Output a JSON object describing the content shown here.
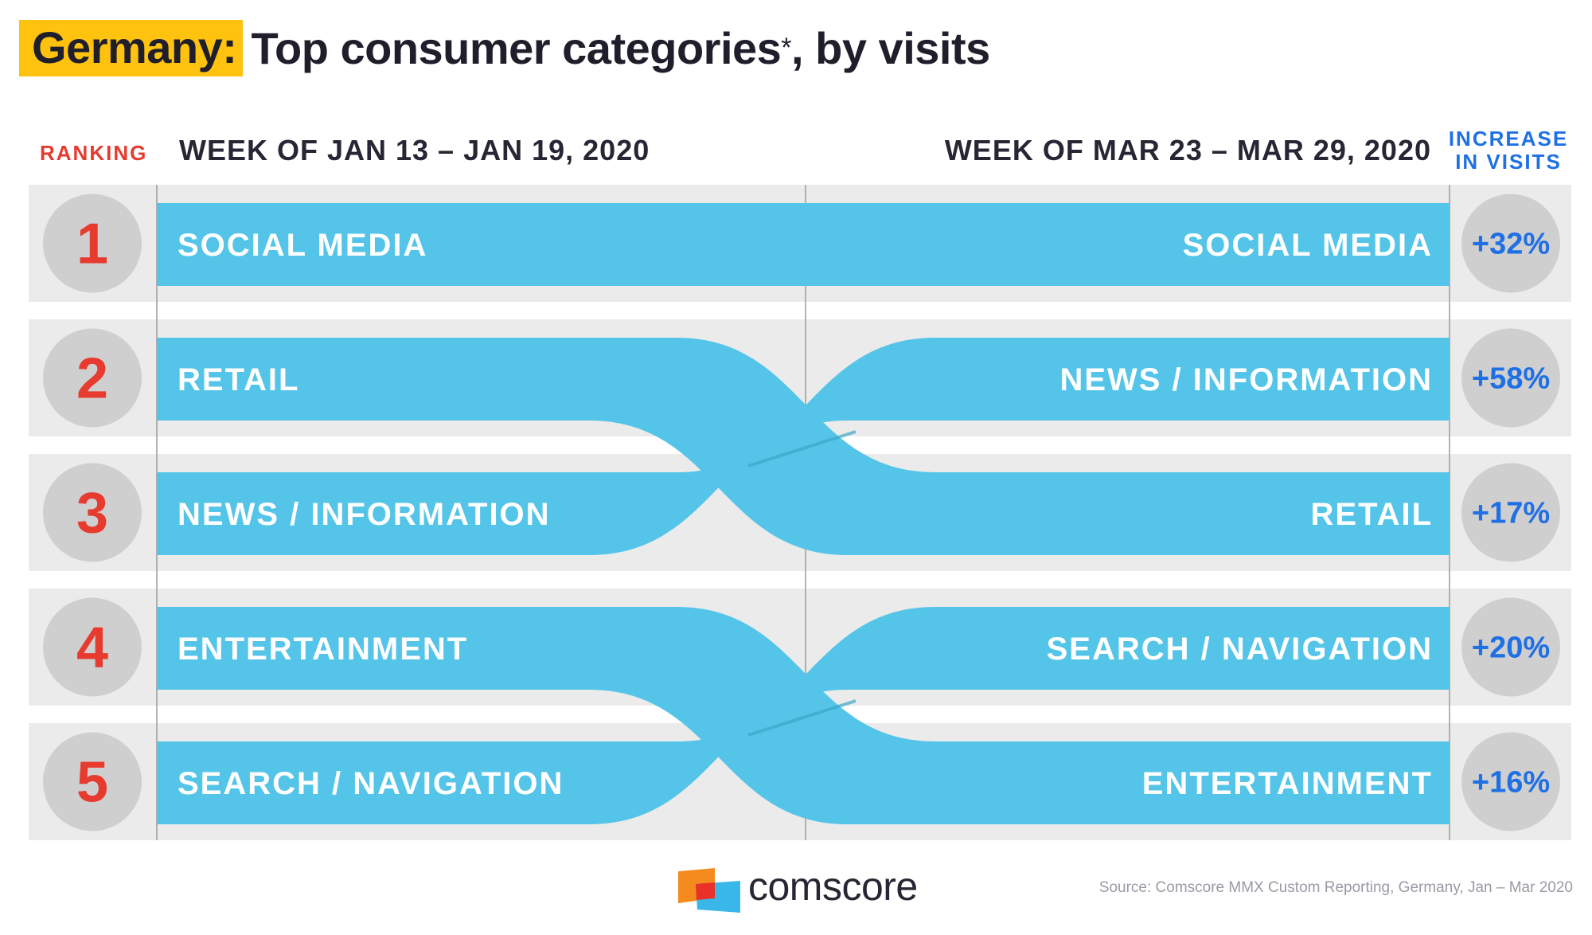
{
  "title": {
    "country": "Germany:",
    "main": "Top consumer categories",
    "asterisk": "*",
    "suffix": ", by visits"
  },
  "headers": {
    "ranking": "RANKING",
    "left_week": "WEEK OF JAN 13 – JAN 19, 2020",
    "right_week": "WEEK OF MAR 23 – MAR 29, 2020",
    "increase_line1": "INCREASE",
    "increase_line2": "IN VISITS"
  },
  "colors": {
    "band": "#54c5e8",
    "row_bg": "#ebebeb",
    "circle": "#cfcfcf",
    "rank_text": "#e63b2e",
    "increase_text": "#1f6fe5",
    "brand_orange": "#f58a1f",
    "brand_red": "#e9302a",
    "brand_blue": "#38b7e8"
  },
  "chart_data": {
    "type": "table",
    "title": "Germany: Top consumer categories*, by visits",
    "ranks": [
      "1",
      "2",
      "3",
      "4",
      "5"
    ],
    "left_period": "WEEK OF JAN 13 – JAN 19, 2020",
    "right_period": "WEEK OF MAR 23 – MAR 29, 2020",
    "left_categories": [
      "SOCIAL MEDIA",
      "RETAIL",
      "NEWS / INFORMATION",
      "ENTERTAINMENT",
      "SEARCH / NAVIGATION"
    ],
    "right_categories": [
      "SOCIAL MEDIA",
      "NEWS / INFORMATION",
      "RETAIL",
      "SEARCH / NAVIGATION",
      "ENTERTAINMENT"
    ],
    "increase_in_visits": [
      "+32%",
      "+58%",
      "+17%",
      "+20%",
      "+16%"
    ],
    "increase_values_pct": [
      32,
      58,
      17,
      20,
      16
    ]
  },
  "footer": {
    "brand": "comscore",
    "source": "Source: Comscore MMX Custom Reporting, Germany, Jan – Mar 2020"
  }
}
